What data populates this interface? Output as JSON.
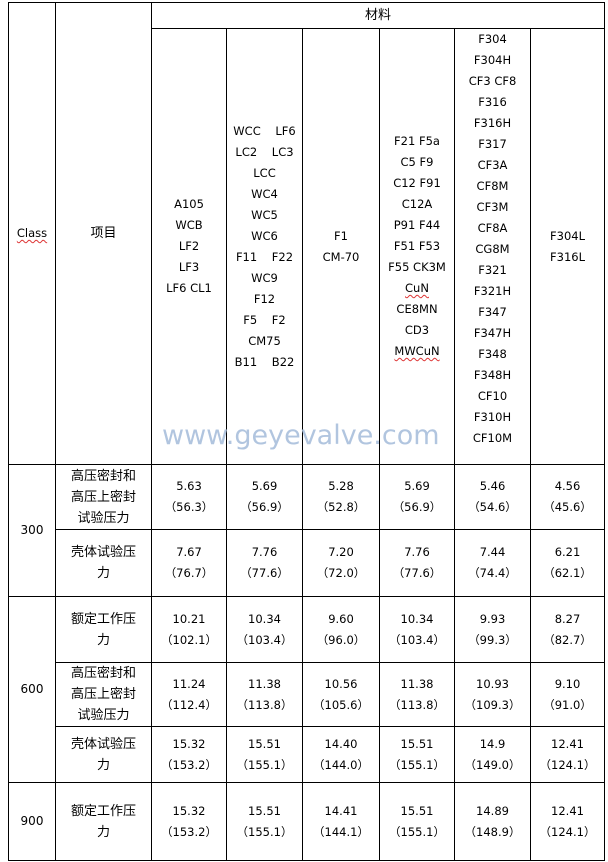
{
  "header": {
    "class_label": "Class",
    "item_label": "项目",
    "material_label": "材料"
  },
  "materials": [
    [
      "A105",
      "WCB",
      "LF2",
      "LF3",
      "LF6 CL1"
    ],
    [
      "WCC    LF6",
      "LC2    LC3",
      "LCC",
      "WC4",
      "WC5",
      "WC6",
      "F11    F22",
      "WC9",
      "F12",
      "F5    F2",
      "CM75",
      "B11    B22"
    ],
    [
      "F1",
      "CM-70"
    ],
    [
      "F21 F5a",
      "C5 F9",
      "C12 F91",
      "C12A",
      "P91 F44",
      "F51 F53",
      "F55 CK3M",
      "CuN",
      "CE8MN",
      "CD3",
      "MWCuN"
    ],
    [
      "F304",
      "F304H",
      "CF3 CF8",
      "F316",
      "F316H",
      "F317",
      "CF3A",
      "CF8M",
      "CF3M",
      "CF8A",
      "CG8M",
      "F321",
      "F321H",
      "F347",
      "F347H",
      "F348",
      "F348H",
      "CF10",
      "F310H",
      "CF10M"
    ],
    [
      "F304L",
      "F316L"
    ]
  ],
  "groups": [
    {
      "class": "300",
      "rows": [
        {
          "item": [
            "高压密封和",
            "高压上密封",
            "试验压力"
          ],
          "values": [
            [
              "5.63",
              "（56.3）"
            ],
            [
              "5.69",
              "（56.9）"
            ],
            [
              "5.28",
              "（52.8）"
            ],
            [
              "5.69",
              "（56.9）"
            ],
            [
              "5.46",
              "（54.6）"
            ],
            [
              "4.56",
              "（45.6）"
            ]
          ]
        },
        {
          "item": [
            "壳体试验压",
            "力"
          ],
          "values": [
            [
              "7.67",
              "（76.7）"
            ],
            [
              "7.76",
              "（77.6）"
            ],
            [
              "7.20",
              "（72.0）"
            ],
            [
              "7.76",
              "（77.6）"
            ],
            [
              "7.44",
              "（74.4）"
            ],
            [
              "6.21",
              "（62.1）"
            ]
          ]
        }
      ]
    },
    {
      "class": "600",
      "rows": [
        {
          "item": [
            "额定工作压",
            "力"
          ],
          "values": [
            [
              "10.21",
              "（102.1）"
            ],
            [
              "10.34",
              "（103.4）"
            ],
            [
              "9.60",
              "（96.0）"
            ],
            [
              "10.34",
              "（103.4）"
            ],
            [
              "9.93",
              "（99.3）"
            ],
            [
              "8.27",
              "（82.7）"
            ]
          ]
        },
        {
          "item": [
            "高压密封和",
            "高压上密封",
            "试验压力"
          ],
          "values": [
            [
              "11.24",
              "（112.4）"
            ],
            [
              "11.38",
              "（113.8）"
            ],
            [
              "10.56",
              "（105.6）"
            ],
            [
              "11.38",
              "（113.8）"
            ],
            [
              "10.93",
              "（109.3）"
            ],
            [
              "9.10",
              "（91.0）"
            ]
          ]
        },
        {
          "item": [
            "壳体试验压",
            "力"
          ],
          "values": [
            [
              "15.32",
              "（153.2）"
            ],
            [
              "15.51",
              "（155.1）"
            ],
            [
              "14.40",
              "（144.0）"
            ],
            [
              "15.51",
              "（155.1）"
            ],
            [
              "14.9",
              "（149.0）"
            ],
            [
              "12.41",
              "（124.1）"
            ]
          ]
        }
      ]
    },
    {
      "class": "900",
      "rows": [
        {
          "item": [
            "额定工作压",
            "力"
          ],
          "values": [
            [
              "15.32",
              "（153.2）"
            ],
            [
              "15.51",
              "（155.1）"
            ],
            [
              "14.41",
              "（144.1）"
            ],
            [
              "15.51",
              "（155.1）"
            ],
            [
              "14.89",
              "（148.9）"
            ],
            [
              "12.41",
              "（124.1）"
            ]
          ]
        }
      ]
    }
  ],
  "watermark": "www.geyevalve.com"
}
